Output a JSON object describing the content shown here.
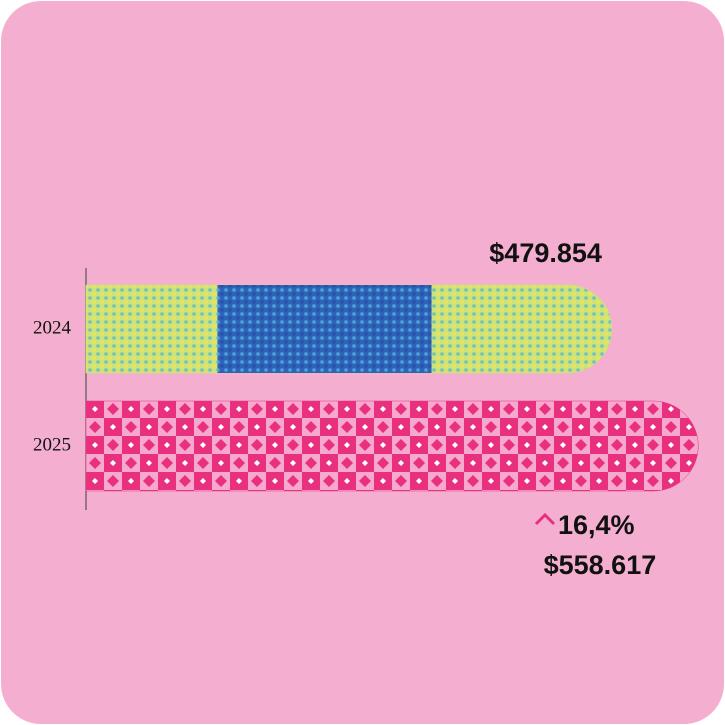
{
  "chart_data": {
    "type": "bar",
    "orientation": "horizontal",
    "categories": [
      "2024",
      "2025"
    ],
    "values": [
      479854,
      558617
    ],
    "value_labels": [
      "$479.854",
      "$558.617"
    ],
    "colors": [
      "#cfe27a",
      "#e8307f"
    ],
    "xlim": [
      0,
      600000
    ],
    "annotation": "16,4%"
  }
}
